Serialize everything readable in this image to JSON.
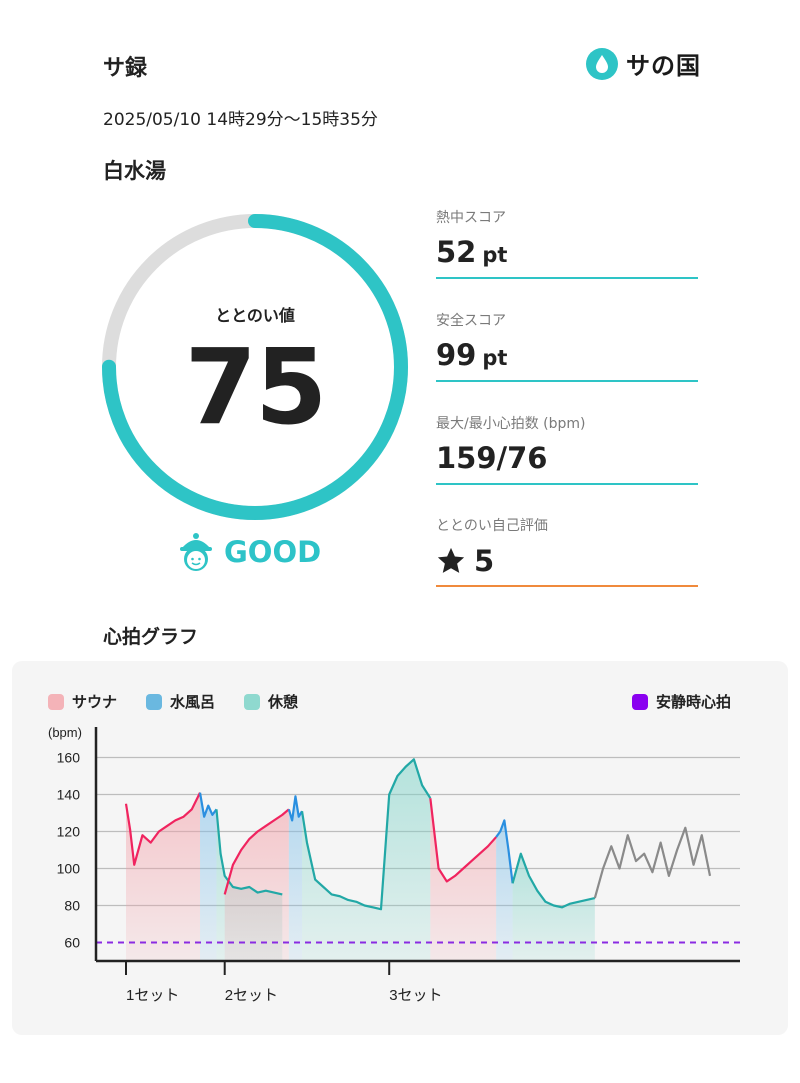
{
  "header": {
    "app_title": "サ録",
    "brand_name": "サの国",
    "brand_icon": "water-drop-icon"
  },
  "session": {
    "datetime": "2025/05/10 14時29分〜15時35分",
    "facility": "白水湯"
  },
  "score": {
    "label": "ととのい値",
    "value": "75",
    "fraction": 0.75,
    "rating": "GOOD",
    "rating_icon": "character-face-icon"
  },
  "metrics": [
    {
      "label": "熱中スコア",
      "value": "52",
      "unit": "pt"
    },
    {
      "label": "安全スコア",
      "value": "99",
      "unit": "pt"
    },
    {
      "label": "最大/最小心拍数 (bpm)",
      "value": "159/76",
      "unit": ""
    },
    {
      "label": "ととのい自己評価",
      "value": "5",
      "unit": "",
      "icon": "star-icon"
    }
  ],
  "colors": {
    "accent": "#2ec4c6",
    "track": "#dddddd",
    "sauna": "#f0245f",
    "cold": "#2a8fe0",
    "rest": "#22a8a6",
    "resting": "#8a2be2",
    "after": "#8a8a8a",
    "self_eval_line": "#f08a3c"
  },
  "graph": {
    "title": "心拍グラフ",
    "legend": [
      {
        "label": "サウナ",
        "color": "#f4b3b8"
      },
      {
        "label": "水風呂",
        "color": "#6ab8e0"
      },
      {
        "label": "休憩",
        "color": "#8fd9cf"
      },
      {
        "label": "安静時心拍",
        "color": "#8a00f0"
      }
    ]
  },
  "chart_data": {
    "type": "line",
    "ylabel": "(bpm)",
    "ylim": [
      50,
      170
    ],
    "yticks": [
      60,
      80,
      100,
      120,
      140,
      160
    ],
    "resting_hr": 60,
    "x_unit": "minutes from session start",
    "xlim": [
      0,
      66
    ],
    "set_markers": [
      {
        "label": "1セット",
        "x": 3
      },
      {
        "label": "2セット",
        "x": 15
      },
      {
        "label": "3セット",
        "x": 35
      }
    ],
    "segments": [
      {
        "phase": "sauna",
        "points": [
          [
            3,
            135
          ],
          [
            3.5,
            121
          ],
          [
            4,
            102
          ],
          [
            5,
            118
          ],
          [
            6,
            114
          ],
          [
            7,
            120
          ],
          [
            8,
            123
          ],
          [
            9,
            126
          ],
          [
            10,
            128
          ],
          [
            11,
            132
          ],
          [
            12,
            141
          ]
        ]
      },
      {
        "phase": "cold",
        "points": [
          [
            12,
            141
          ],
          [
            12.5,
            128
          ],
          [
            13,
            134
          ],
          [
            13.5,
            129
          ],
          [
            14,
            132
          ]
        ]
      },
      {
        "phase": "rest",
        "points": [
          [
            14,
            132
          ],
          [
            14.5,
            108
          ],
          [
            15,
            96
          ],
          [
            16,
            90
          ],
          [
            17,
            89
          ],
          [
            18,
            90
          ],
          [
            19,
            87
          ],
          [
            20,
            88
          ],
          [
            21,
            87
          ],
          [
            22,
            86
          ]
        ]
      },
      {
        "phase": "sauna",
        "points": [
          [
            15,
            86
          ],
          [
            16,
            102
          ],
          [
            17,
            110
          ],
          [
            18,
            116
          ],
          [
            19,
            120
          ],
          [
            20,
            123
          ],
          [
            21,
            126
          ],
          [
            22,
            129
          ],
          [
            22.8,
            132
          ]
        ]
      },
      {
        "phase": "cold",
        "points": [
          [
            22.8,
            132
          ],
          [
            23.2,
            126
          ],
          [
            23.6,
            139
          ],
          [
            24,
            128
          ],
          [
            24.4,
            131
          ]
        ]
      },
      {
        "phase": "rest",
        "points": [
          [
            24.4,
            131
          ],
          [
            25,
            114
          ],
          [
            26,
            94
          ],
          [
            27,
            90
          ],
          [
            28,
            86
          ],
          [
            29,
            85
          ],
          [
            30,
            83
          ],
          [
            31,
            82
          ],
          [
            32,
            80
          ],
          [
            33,
            79
          ],
          [
            34,
            78
          ],
          [
            35,
            140
          ],
          [
            36,
            150
          ],
          [
            37,
            155
          ],
          [
            38,
            159
          ],
          [
            39,
            145
          ],
          [
            40,
            138
          ]
        ]
      },
      {
        "phase": "sauna",
        "points": [
          [
            40,
            138
          ],
          [
            41,
            100
          ],
          [
            42,
            93
          ],
          [
            43,
            96
          ],
          [
            44,
            100
          ],
          [
            45,
            104
          ],
          [
            46,
            108
          ],
          [
            47,
            112
          ],
          [
            48,
            117
          ]
        ]
      },
      {
        "phase": "cold",
        "points": [
          [
            48,
            117
          ],
          [
            48.5,
            120
          ],
          [
            49,
            126
          ],
          [
            49.5,
            110
          ],
          [
            50,
            92
          ]
        ]
      },
      {
        "phase": "rest",
        "points": [
          [
            50,
            92
          ],
          [
            51,
            108
          ],
          [
            52,
            96
          ],
          [
            53,
            88
          ],
          [
            54,
            82
          ],
          [
            55,
            80
          ],
          [
            56,
            79
          ],
          [
            57,
            81
          ],
          [
            58,
            82
          ],
          [
            59,
            83
          ],
          [
            60,
            84
          ]
        ]
      },
      {
        "phase": "after",
        "points": [
          [
            60,
            84
          ],
          [
            61,
            100
          ],
          [
            62,
            112
          ],
          [
            63,
            100
          ],
          [
            64,
            118
          ],
          [
            65,
            104
          ],
          [
            66,
            108
          ],
          [
            67,
            98
          ],
          [
            68,
            114
          ],
          [
            69,
            96
          ],
          [
            70,
            110
          ],
          [
            71,
            122
          ],
          [
            72,
            102
          ],
          [
            73,
            118
          ],
          [
            74,
            96
          ]
        ]
      }
    ]
  }
}
